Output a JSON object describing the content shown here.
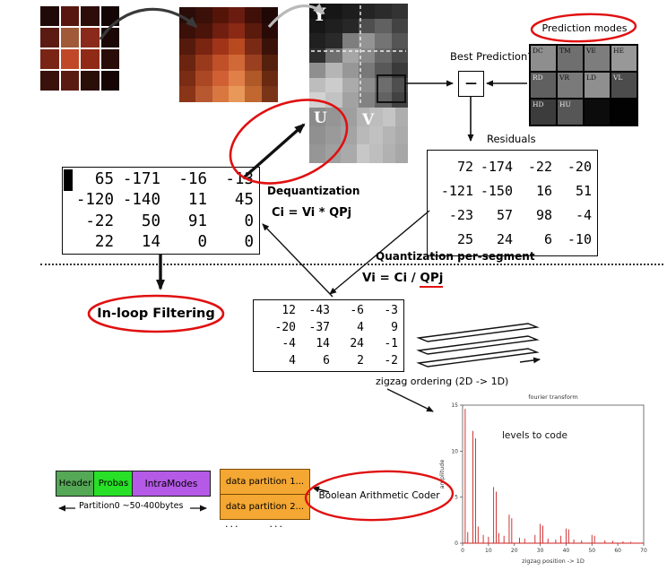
{
  "planes": {
    "y": "Y",
    "u": "U",
    "v": "V"
  },
  "mosaics": {
    "source": {
      "cols": 4,
      "colors": [
        "#200a08",
        "#571610",
        "#2c0d0a",
        "#140605",
        "#5c1b12",
        "#a05a3a",
        "#8a2a1a",
        "#1b0806",
        "#7a2416",
        "#c04828",
        "#902a16",
        "#2a0c08",
        "#3a120c",
        "#5a1c12",
        "#2a0e08",
        "#150605"
      ]
    },
    "zoom": {
      "cols": 6,
      "colors": [
        "#2a0c08",
        "#3a1008",
        "#551408",
        "#6b1c10",
        "#401008",
        "#200806",
        "#3a1008",
        "#4a140a",
        "#701e10",
        "#8b2a14",
        "#5a1a0c",
        "#2a0a06",
        "#551a0c",
        "#7a2412",
        "#a03418",
        "#b84a20",
        "#7a2a14",
        "#3a120a",
        "#6b2410",
        "#9a3a1c",
        "#c05028",
        "#d06838",
        "#9a4020",
        "#55200e",
        "#7a2c14",
        "#aa4824",
        "#d06034",
        "#e08048",
        "#b05828",
        "#6a2a12",
        "#8a3418",
        "#b85830",
        "#d87840",
        "#e89858",
        "#c06830",
        "#7a3418"
      ]
    },
    "y": {
      "cols": 6,
      "colors": [
        "#101010",
        "#161616",
        "#1d1d1d",
        "#242424",
        "#2b2b2b",
        "#333333",
        "#171717",
        "#1f1f1f",
        "#272727",
        "#4f4f4f",
        "#616161",
        "#434343",
        "#202020",
        "#2a2a2a",
        "#7e7e7e",
        "#949494",
        "#747474",
        "#555555",
        "#2e2e2e",
        "#6f6f6f",
        "#a6a6a6",
        "#8a8a8a",
        "#676767",
        "#4a4a4a",
        "#8f8f8f",
        "#b5b5b5",
        "#979797",
        "#787878",
        "#585858",
        "#3a3a3a",
        "#bdbdbd",
        "#cccccc",
        "#ababab",
        "#8d8d8d",
        "#6d6d6d",
        "#4e4e4e",
        "#d2d2d2",
        "#c2c2c2",
        "#a2a2a2",
        "#828282",
        "#626262",
        "#424242"
      ]
    },
    "u": {
      "cols": 3,
      "colors": [
        "#8b8b8b",
        "#959595",
        "#9f9f9f",
        "#909090",
        "#9a9a9a",
        "#a4a4a4",
        "#969696",
        "#a0a0a0",
        "#aaaaaa"
      ]
    },
    "v": {
      "cols": 4,
      "colors": [
        "#b3b3b3",
        "#bdbdbd",
        "#c5c5c5",
        "#aeaeae",
        "#b9b9b9",
        "#c1c1c1",
        "#b5b5b5",
        "#ababab",
        "#c7c7c7",
        "#bebebe",
        "#b1b1b1",
        "#a7a7a7"
      ]
    }
  },
  "prediction": {
    "modes_label": "Prediction modes",
    "best_label": "Best Prediction???",
    "subtract_symbol": "—",
    "cells": [
      {
        "label": "DC",
        "bg": "#8e8e8e",
        "fg": "#111111"
      },
      {
        "label": "TM",
        "bg": "#6f6f6f",
        "fg": "#111111"
      },
      {
        "label": "VE",
        "bg": "#7d7d7d",
        "fg": "#111111"
      },
      {
        "label": "HE",
        "bg": "#989898",
        "fg": "#111111"
      },
      {
        "label": "RD",
        "bg": "#606060",
        "fg": "#e8e8e8"
      },
      {
        "label": "VR",
        "bg": "#7a7a7a",
        "fg": "#111111"
      },
      {
        "label": "LD",
        "bg": "#8f8f8f",
        "fg": "#111111"
      },
      {
        "label": "VL",
        "bg": "#4c4c4c",
        "fg": "#e8e8e8"
      },
      {
        "label": "HD",
        "bg": "#3c3c3c",
        "fg": "#e8e8e8"
      },
      {
        "label": "HU",
        "bg": "#565656",
        "fg": "#e8e8e8"
      },
      {
        "label": "",
        "bg": "#0c0c0c",
        "fg": "#e8e8e8"
      },
      {
        "label": "",
        "bg": "#020202",
        "fg": "#e8e8e8"
      }
    ]
  },
  "residuals": {
    "label": "Residuals",
    "matrix": [
      [
        "72",
        "-174",
        "-22",
        "-20"
      ],
      [
        "-121",
        "-150",
        "16",
        "51"
      ],
      [
        "-23",
        "57",
        "98",
        "-4"
      ],
      [
        "25",
        "24",
        "6",
        "-10"
      ]
    ]
  },
  "dequantized": {
    "matrix": [
      [
        "65",
        "-171",
        "-16",
        "-13"
      ],
      [
        "-120",
        "-140",
        "11",
        "45"
      ],
      [
        "-22",
        "50",
        "91",
        "0"
      ],
      [
        "22",
        "14",
        "0",
        "0"
      ]
    ]
  },
  "quantized": {
    "matrix": [
      [
        "12",
        "-43",
        "-6",
        "-3"
      ],
      [
        "-20",
        "-37",
        "4",
        "9"
      ],
      [
        "-4",
        "14",
        "24",
        "-1"
      ],
      [
        "4",
        "6",
        "2",
        "-2"
      ]
    ]
  },
  "labels": {
    "dequantization": "Dequantization",
    "dequant_formula": "Ci = Vi * QPj",
    "quantization": "Quantization per-segment",
    "quant_formula_pre": "Vi = Ci / ",
    "quant_formula_qp": "QPj",
    "inloop_filtering": "In-loop Filtering",
    "zigzag_ordering": "zigzag ordering  (2D -> 1D)"
  },
  "bitstream": {
    "header": "Header",
    "probas": "Probas",
    "intra_modes": "IntraModes",
    "partition0": "Partition0 ~50-400bytes",
    "data_partition_1": "data partition 1...",
    "data_partition_2": "data partition 2...",
    "more_dots": "...      ...",
    "coder": "Boolean Arithmetic Coder",
    "colors": {
      "header_bg": "#55a855",
      "probas_bg": "#27e027",
      "intra_bg": "#b45ae6",
      "partition_bg": "#f5a733"
    }
  },
  "accent": {
    "red": "#e01010"
  },
  "chart_data": {
    "type": "stem",
    "title": "fourier transform",
    "inner_label": "levels to code",
    "xlabel": "zigzag position  -> 1D",
    "ylabel": "amplitude",
    "xlim": [
      0,
      70
    ],
    "ylim": [
      0,
      15
    ],
    "xticks": [
      0,
      10,
      20,
      30,
      40,
      50,
      60,
      70
    ],
    "yticks": [
      0,
      5,
      10,
      15
    ],
    "line_color": "#cc2222",
    "legend": null,
    "grid": false,
    "x": [
      1,
      2,
      4,
      5,
      6,
      8,
      10,
      12,
      13,
      14,
      16,
      18,
      19,
      22,
      24,
      28,
      30,
      31,
      33,
      36,
      38,
      40,
      41,
      43,
      46,
      50,
      51,
      55,
      58,
      62,
      65
    ],
    "y": [
      14.6,
      1.2,
      12.2,
      11.4,
      1.8,
      0.9,
      0.7,
      6.1,
      5.6,
      1.1,
      0.8,
      3.1,
      2.7,
      0.6,
      0.5,
      0.9,
      2.1,
      1.9,
      0.5,
      0.4,
      0.8,
      1.6,
      1.5,
      0.4,
      0.3,
      0.9,
      0.8,
      0.3,
      0.25,
      0.2,
      0.15
    ]
  }
}
